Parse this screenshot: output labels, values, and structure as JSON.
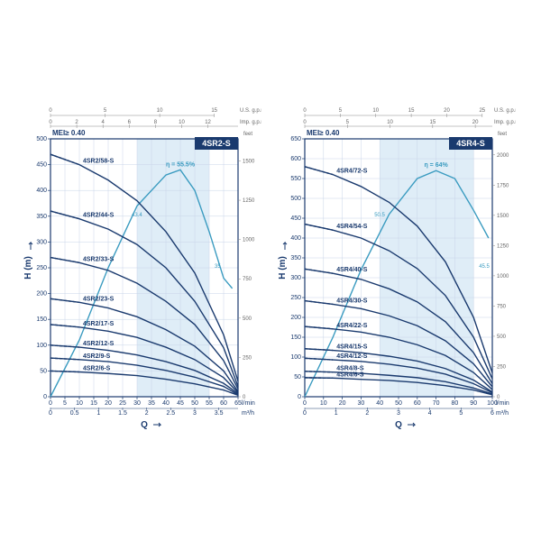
{
  "charts": [
    {
      "title": "4SR2-S",
      "mei_label": "MEI≥ 0.40",
      "eta_label": "η = 55.5%",
      "eta_vals": [
        "43.4",
        "35"
      ],
      "x_axis": {
        "label": "Q",
        "unit_bottom": "m³/h",
        "unit_inline": "l/min",
        "ticks_lmin": [
          0,
          5,
          10,
          15,
          20,
          25,
          30,
          35,
          40,
          45,
          50,
          55,
          60,
          65
        ],
        "ticks_m3h": [
          0,
          0.5,
          1,
          1.5,
          2,
          2.5,
          3,
          3.5,
          4
        ],
        "xlim_lmin": [
          0,
          65
        ],
        "top_us": {
          "label": "U.S. g.p.m.",
          "ticks": [
            0,
            5,
            10,
            15
          ]
        },
        "top_imp": {
          "label": "Imp. g.p.m.",
          "ticks": [
            0,
            2,
            4,
            6,
            8,
            10,
            12
          ]
        }
      },
      "y_axis": {
        "label": "H",
        "unit": "(m)",
        "ticks": [
          0,
          50,
          100,
          150,
          200,
          250,
          300,
          350,
          400,
          450,
          500
        ],
        "ylim": [
          0,
          500
        ],
        "right": {
          "label": "feet",
          "ticks": [
            0,
            250,
            500,
            750,
            1000,
            1250,
            1500
          ]
        }
      },
      "shade_band_x": [
        30,
        55
      ],
      "colors": {
        "grid": "#c8d4e8",
        "axis": "#1a3a6e",
        "curve": "#1a3a6e",
        "eta_curve": "#3a9bc0",
        "shade": "#c5dff0",
        "background": "#ffffff"
      },
      "eta_curve": [
        [
          0,
          0
        ],
        [
          10,
          110
        ],
        [
          20,
          250
        ],
        [
          30,
          370
        ],
        [
          40,
          430
        ],
        [
          45,
          440
        ],
        [
          50,
          400
        ],
        [
          55,
          320
        ],
        [
          60,
          230
        ],
        [
          63,
          210
        ]
      ],
      "curves": [
        {
          "label": "4SR2/58-S",
          "pts": [
            [
              0,
              470
            ],
            [
              10,
              450
            ],
            [
              20,
              420
            ],
            [
              30,
              380
            ],
            [
              40,
              320
            ],
            [
              50,
              240
            ],
            [
              60,
              120
            ],
            [
              65,
              30
            ]
          ]
        },
        {
          "label": "4SR2/44-S",
          "pts": [
            [
              0,
              360
            ],
            [
              10,
              345
            ],
            [
              20,
              325
            ],
            [
              30,
              295
            ],
            [
              40,
              250
            ],
            [
              50,
              185
            ],
            [
              60,
              95
            ],
            [
              65,
              20
            ]
          ]
        },
        {
          "label": "4SR2/33-S",
          "pts": [
            [
              0,
              270
            ],
            [
              10,
              260
            ],
            [
              20,
              245
            ],
            [
              30,
              220
            ],
            [
              40,
              185
            ],
            [
              50,
              140
            ],
            [
              60,
              70
            ],
            [
              65,
              15
            ]
          ]
        },
        {
          "label": "4SR2/23-S",
          "pts": [
            [
              0,
              190
            ],
            [
              10,
              183
            ],
            [
              20,
              172
            ],
            [
              30,
              155
            ],
            [
              40,
              130
            ],
            [
              50,
              98
            ],
            [
              60,
              50
            ],
            [
              65,
              10
            ]
          ]
        },
        {
          "label": "4SR2/17-S",
          "pts": [
            [
              0,
              140
            ],
            [
              10,
              135
            ],
            [
              20,
              127
            ],
            [
              30,
              115
            ],
            [
              40,
              96
            ],
            [
              50,
              72
            ],
            [
              60,
              37
            ],
            [
              65,
              8
            ]
          ]
        },
        {
          "label": "4SR2/12-S",
          "pts": [
            [
              0,
              100
            ],
            [
              10,
              96
            ],
            [
              20,
              90
            ],
            [
              30,
              81
            ],
            [
              40,
              68
            ],
            [
              50,
              51
            ],
            [
              60,
              26
            ],
            [
              65,
              6
            ]
          ]
        },
        {
          "label": "4SR2/9-S",
          "pts": [
            [
              0,
              75
            ],
            [
              10,
              72
            ],
            [
              20,
              68
            ],
            [
              30,
              61
            ],
            [
              40,
              51
            ],
            [
              50,
              38
            ],
            [
              60,
              20
            ],
            [
              65,
              4
            ]
          ]
        },
        {
          "label": "4SR2/6-S",
          "pts": [
            [
              0,
              50
            ],
            [
              10,
              48
            ],
            [
              20,
              45
            ],
            [
              30,
              41
            ],
            [
              40,
              34
            ],
            [
              50,
              25
            ],
            [
              60,
              13
            ],
            [
              65,
              3
            ]
          ]
        }
      ]
    },
    {
      "title": "4SR4-S",
      "mei_label": "MEI≥ 0.40",
      "eta_label": "η = 64%",
      "eta_vals": [
        "50.5",
        "45.5"
      ],
      "x_axis": {
        "label": "Q",
        "unit_bottom": "m³/h",
        "unit_inline": "l/min",
        "ticks_lmin": [
          0,
          10,
          20,
          30,
          40,
          50,
          60,
          70,
          80,
          90,
          100
        ],
        "ticks_m3h": [
          0,
          1,
          2,
          3,
          4,
          5,
          6
        ],
        "xlim_lmin": [
          0,
          100
        ],
        "top_us": {
          "label": "U.S. g.p.m.",
          "ticks": [
            0,
            5,
            10,
            15,
            20,
            25
          ]
        },
        "top_imp": {
          "label": "Imp. g.p.m.",
          "ticks": [
            0,
            5,
            10,
            15,
            20
          ]
        }
      },
      "y_axis": {
        "label": "H",
        "unit": "(m)",
        "ticks": [
          0,
          50,
          100,
          150,
          200,
          250,
          300,
          350,
          400,
          450,
          500,
          550,
          600,
          650
        ],
        "ylim": [
          0,
          650
        ],
        "right": {
          "label": "feet",
          "ticks": [
            0,
            250,
            500,
            750,
            1000,
            1250,
            1500,
            1750,
            2000
          ]
        }
      },
      "shade_band_x": [
        40,
        90
      ],
      "colors": {
        "grid": "#c8d4e8",
        "axis": "#1a3a6e",
        "curve": "#1a3a6e",
        "eta_curve": "#3a9bc0",
        "shade": "#c5dff0",
        "background": "#ffffff"
      },
      "eta_curve": [
        [
          0,
          0
        ],
        [
          15,
          150
        ],
        [
          30,
          320
        ],
        [
          45,
          460
        ],
        [
          60,
          550
        ],
        [
          70,
          570
        ],
        [
          80,
          550
        ],
        [
          90,
          470
        ],
        [
          98,
          400
        ]
      ],
      "curves": [
        {
          "label": "4SR4/72-S",
          "pts": [
            [
              0,
              580
            ],
            [
              15,
              560
            ],
            [
              30,
              530
            ],
            [
              45,
              490
            ],
            [
              60,
              430
            ],
            [
              75,
              340
            ],
            [
              90,
              200
            ],
            [
              100,
              60
            ]
          ]
        },
        {
          "label": "4SR4/54-S",
          "pts": [
            [
              0,
              435
            ],
            [
              15,
              420
            ],
            [
              30,
              400
            ],
            [
              45,
              368
            ],
            [
              60,
              323
            ],
            [
              75,
              255
            ],
            [
              90,
              150
            ],
            [
              100,
              45
            ]
          ]
        },
        {
          "label": "4SR4/40-S",
          "pts": [
            [
              0,
              322
            ],
            [
              15,
              311
            ],
            [
              30,
              296
            ],
            [
              45,
              272
            ],
            [
              60,
              239
            ],
            [
              75,
              189
            ],
            [
              90,
              111
            ],
            [
              100,
              33
            ]
          ]
        },
        {
          "label": "4SR4/30-S",
          "pts": [
            [
              0,
              242
            ],
            [
              15,
              233
            ],
            [
              30,
              222
            ],
            [
              45,
              204
            ],
            [
              60,
              179
            ],
            [
              75,
              141
            ],
            [
              90,
              83
            ],
            [
              100,
              25
            ]
          ]
        },
        {
          "label": "4SR4/22-S",
          "pts": [
            [
              0,
              177
            ],
            [
              15,
              171
            ],
            [
              30,
              163
            ],
            [
              45,
              150
            ],
            [
              60,
              131
            ],
            [
              75,
              104
            ],
            [
              90,
              61
            ],
            [
              100,
              18
            ]
          ]
        },
        {
          "label": "4SR4/15-S",
          "pts": [
            [
              0,
              121
            ],
            [
              15,
              117
            ],
            [
              30,
              111
            ],
            [
              45,
              102
            ],
            [
              60,
              90
            ],
            [
              75,
              71
            ],
            [
              90,
              42
            ],
            [
              100,
              12
            ]
          ]
        },
        {
          "label": "4SR4/12-S",
          "pts": [
            [
              0,
              97
            ],
            [
              15,
              93
            ],
            [
              30,
              89
            ],
            [
              45,
              82
            ],
            [
              60,
              72
            ],
            [
              75,
              57
            ],
            [
              90,
              33
            ],
            [
              100,
              10
            ]
          ]
        },
        {
          "label": "4SR4/8-S",
          "pts": [
            [
              0,
              64
            ],
            [
              15,
              62
            ],
            [
              30,
              59
            ],
            [
              45,
              54
            ],
            [
              60,
              48
            ],
            [
              75,
              38
            ],
            [
              90,
              22
            ],
            [
              100,
              7
            ]
          ]
        },
        {
          "label": "4SR4/6-S",
          "pts": [
            [
              0,
              48
            ],
            [
              15,
              47
            ],
            [
              30,
              44
            ],
            [
              45,
              41
            ],
            [
              60,
              36
            ],
            [
              75,
              28
            ],
            [
              90,
              17
            ],
            [
              100,
              5
            ]
          ]
        }
      ]
    }
  ],
  "typography": {
    "font_family": "Arial, sans-serif",
    "tick_fontsize": 7,
    "label_fontsize": 10
  },
  "line_style": {
    "curve_width": 1.4,
    "eta_width": 1.4,
    "grid_width": 0.5,
    "axis_width": 1.2
  }
}
